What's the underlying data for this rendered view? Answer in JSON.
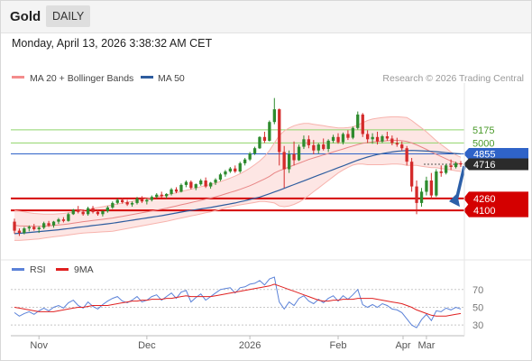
{
  "header": {
    "symbol": "Gold",
    "timeframe": "DAILY",
    "timestamp": "Monday, April 13, 2026 3:38:32 AM CET"
  },
  "legend": {
    "bollinger": {
      "label": "MA 20 + Bollinger Bands",
      "color": "#f48c8c"
    },
    "ma50": {
      "label": "MA 50",
      "color": "#2e5d9f"
    },
    "credit": "Research © 2026 Trading Central"
  },
  "rsi_legend": {
    "rsi": {
      "label": "RSI",
      "color": "#5b82d8"
    },
    "ma9": {
      "label": "9MA",
      "color": "#e02020"
    }
  },
  "colors": {
    "up": "#2e8b2e",
    "down": "#d42a2a",
    "band_fill": "#fde6e4",
    "support": "#d40000",
    "resistance": "#8fd46a",
    "ma50_level": "#2f63c8",
    "arrow": "#2c5fa8"
  },
  "chart_data": [
    {
      "type": "candlestick",
      "x_labels": [
        "Nov",
        "Dec",
        "2026",
        "Feb",
        "Mar",
        "Apr"
      ],
      "ylim": [
        3500,
        5800
      ],
      "levels": [
        {
          "value": 5175,
          "label": "5175",
          "kind": "resistance"
        },
        {
          "value": 5000,
          "label": "5000",
          "kind": "resistance"
        },
        {
          "value": 4855,
          "label": "4855",
          "kind": "ma50"
        },
        {
          "value": 4716,
          "label": "4716",
          "kind": "last"
        },
        {
          "value": 4260,
          "label": "4260",
          "kind": "support"
        },
        {
          "value": 4100,
          "label": "4100",
          "kind": "support"
        }
      ],
      "candles": [
        [
          3950,
          3990,
          3790,
          3830
        ],
        [
          3830,
          3860,
          3760,
          3800
        ],
        [
          3800,
          3880,
          3780,
          3860
        ],
        [
          3860,
          3900,
          3820,
          3880
        ],
        [
          3880,
          3920,
          3830,
          3850
        ],
        [
          3850,
          3890,
          3800,
          3870
        ],
        [
          3870,
          3950,
          3850,
          3930
        ],
        [
          3930,
          3960,
          3880,
          3900
        ],
        [
          3900,
          3960,
          3870,
          3950
        ],
        [
          3950,
          4000,
          3920,
          3980
        ],
        [
          3980,
          4010,
          3940,
          3960
        ],
        [
          3960,
          4070,
          3950,
          4050
        ],
        [
          4050,
          4120,
          4040,
          4110
        ],
        [
          4110,
          4160,
          4060,
          4080
        ],
        [
          4080,
          4110,
          4030,
          4050
        ],
        [
          4050,
          4150,
          4030,
          4130
        ],
        [
          4130,
          4160,
          4060,
          4080
        ],
        [
          4080,
          4110,
          4030,
          4050
        ],
        [
          4050,
          4100,
          4020,
          4090
        ],
        [
          4090,
          4160,
          4070,
          4140
        ],
        [
          4140,
          4220,
          4120,
          4200
        ],
        [
          4200,
          4260,
          4180,
          4240
        ],
        [
          4240,
          4270,
          4190,
          4210
        ],
        [
          4210,
          4240,
          4160,
          4180
        ],
        [
          4180,
          4220,
          4150,
          4200
        ],
        [
          4200,
          4280,
          4180,
          4260
        ],
        [
          4260,
          4290,
          4200,
          4220
        ],
        [
          4220,
          4260,
          4180,
          4240
        ],
        [
          4240,
          4300,
          4220,
          4280
        ],
        [
          4280,
          4330,
          4260,
          4310
        ],
        [
          4310,
          4350,
          4270,
          4290
        ],
        [
          4290,
          4330,
          4260,
          4320
        ],
        [
          4320,
          4400,
          4300,
          4380
        ],
        [
          4380,
          4410,
          4330,
          4350
        ],
        [
          4350,
          4460,
          4340,
          4440
        ],
        [
          4440,
          4500,
          4410,
          4480
        ],
        [
          4480,
          4500,
          4380,
          4400
        ],
        [
          4400,
          4460,
          4370,
          4450
        ],
        [
          4450,
          4520,
          4430,
          4500
        ],
        [
          4500,
          4540,
          4400,
          4420
        ],
        [
          4420,
          4480,
          4390,
          4470
        ],
        [
          4470,
          4530,
          4440,
          4510
        ],
        [
          4510,
          4600,
          4490,
          4580
        ],
        [
          4580,
          4640,
          4550,
          4620
        ],
        [
          4620,
          4680,
          4600,
          4660
        ],
        [
          4660,
          4700,
          4600,
          4620
        ],
        [
          4620,
          4750,
          4600,
          4730
        ],
        [
          4730,
          4800,
          4700,
          4780
        ],
        [
          4780,
          4880,
          4760,
          4860
        ],
        [
          4860,
          4950,
          4840,
          4930
        ],
        [
          4930,
          5090,
          4920,
          5080
        ],
        [
          5080,
          5150,
          5000,
          5030
        ],
        [
          5030,
          5300,
          5020,
          5280
        ],
        [
          5280,
          5600,
          5250,
          5450
        ],
        [
          5450,
          5460,
          4700,
          4880
        ],
        [
          4880,
          4960,
          4400,
          4650
        ],
        [
          4650,
          4900,
          4600,
          4850
        ],
        [
          4850,
          5020,
          4700,
          4770
        ],
        [
          4770,
          4980,
          4760,
          4950
        ],
        [
          4950,
          5100,
          4920,
          5050
        ],
        [
          5050,
          5100,
          4930,
          4970
        ],
        [
          4970,
          5040,
          4850,
          4900
        ],
        [
          4900,
          5000,
          4860,
          4980
        ],
        [
          4980,
          5060,
          4900,
          4920
        ],
        [
          4920,
          5050,
          4880,
          5030
        ],
        [
          5030,
          5110,
          5000,
          5080
        ],
        [
          5080,
          5130,
          4990,
          5010
        ],
        [
          5010,
          5140,
          4980,
          5120
        ],
        [
          5120,
          5170,
          5040,
          5070
        ],
        [
          5070,
          5220,
          5050,
          5200
        ],
        [
          5200,
          5420,
          5180,
          5380
        ],
        [
          5380,
          5400,
          5080,
          5120
        ],
        [
          5120,
          5170,
          5000,
          5050
        ],
        [
          5050,
          5130,
          4990,
          5080
        ],
        [
          5080,
          5150,
          4980,
          5020
        ],
        [
          5020,
          5110,
          5000,
          5090
        ],
        [
          5090,
          5150,
          5030,
          5060
        ],
        [
          5060,
          5100,
          4970,
          5000
        ],
        [
          5000,
          5070,
          4950,
          4980
        ],
        [
          4980,
          5020,
          4900,
          4930
        ],
        [
          4930,
          4960,
          4700,
          4750
        ],
        [
          4750,
          4800,
          4350,
          4420
        ],
        [
          4420,
          4500,
          4050,
          4200
        ],
        [
          4200,
          4400,
          4150,
          4350
        ],
        [
          4350,
          4550,
          4300,
          4500
        ],
        [
          4500,
          4600,
          4250,
          4300
        ],
        [
          4300,
          4650,
          4280,
          4620
        ],
        [
          4620,
          4700,
          4550,
          4600
        ],
        [
          4600,
          4720,
          4580,
          4700
        ],
        [
          4700,
          4780,
          4640,
          4680
        ],
        [
          4680,
          4750,
          4660,
          4730
        ],
        [
          4730,
          4760,
          4680,
          4716
        ]
      ],
      "ma20": [
        3900,
        3895,
        3892,
        3890,
        3888,
        3888,
        3890,
        3895,
        3900,
        3906,
        3912,
        3920,
        3930,
        3940,
        3950,
        3958,
        3966,
        3974,
        3982,
        3990,
        3998,
        4010,
        4022,
        4034,
        4046,
        4058,
        4070,
        4082,
        4094,
        4106,
        4118,
        4130,
        4145,
        4160,
        4175,
        4190,
        4205,
        4220,
        4235,
        4250,
        4265,
        4282,
        4300,
        4320,
        4340,
        4360,
        4382,
        4405,
        4430,
        4458,
        4490,
        4520,
        4555,
        4600,
        4630,
        4655,
        4680,
        4705,
        4730,
        4755,
        4780,
        4800,
        4820,
        4840,
        4860,
        4880,
        4900,
        4920,
        4940,
        4960,
        4980,
        4995,
        5005,
        5015,
        5020,
        5025,
        5030,
        5035,
        5035,
        5030,
        5020,
        5000,
        4975,
        4945,
        4915,
        4880,
        4850,
        4820,
        4790,
        4760,
        4735,
        4715
      ],
      "bb_upper": [
        4100,
        4090,
        4080,
        4070,
        4060,
        4055,
        4050,
        4050,
        4052,
        4055,
        4060,
        4068,
        4078,
        4090,
        4102,
        4114,
        4126,
        4138,
        4150,
        4162,
        4174,
        4186,
        4198,
        4210,
        4222,
        4234,
        4246,
        4258,
        4270,
        4282,
        4294,
        4306,
        4320,
        4336,
        4352,
        4368,
        4384,
        4400,
        4416,
        4432,
        4448,
        4466,
        4486,
        4508,
        4532,
        4558,
        4590,
        4625,
        4665,
        4710,
        4760,
        4820,
        4900,
        5000,
        5100,
        5160,
        5200,
        5230,
        5250,
        5260,
        5260,
        5250,
        5240,
        5230,
        5220,
        5210,
        5200,
        5200,
        5205,
        5215,
        5240,
        5270,
        5300,
        5320,
        5330,
        5340,
        5345,
        5350,
        5350,
        5345,
        5340,
        5300,
        5250,
        5200,
        5150,
        5090,
        5030,
        4980,
        4930,
        4880,
        4840,
        4810
      ],
      "bb_lower": [
        3700,
        3700,
        3705,
        3710,
        3715,
        3720,
        3730,
        3740,
        3748,
        3756,
        3764,
        3772,
        3782,
        3790,
        3798,
        3802,
        3806,
        3810,
        3814,
        3818,
        3822,
        3834,
        3846,
        3858,
        3870,
        3882,
        3894,
        3906,
        3918,
        3930,
        3942,
        3954,
        3970,
        3984,
        3998,
        4012,
        4026,
        4040,
        4054,
        4068,
        4082,
        4098,
        4114,
        4132,
        4148,
        4162,
        4174,
        4185,
        4195,
        4206,
        4220,
        4220,
        4210,
        4200,
        4160,
        4150,
        4160,
        4180,
        4210,
        4250,
        4300,
        4350,
        4400,
        4450,
        4500,
        4550,
        4600,
        4640,
        4675,
        4705,
        4720,
        4720,
        4710,
        4710,
        4710,
        4710,
        4715,
        4720,
        4720,
        4715,
        4700,
        4700,
        4700,
        4690,
        4680,
        4670,
        4670,
        4660,
        4650,
        4640,
        4630,
        4620
      ],
      "ma50": [
        3790,
        3795,
        3800,
        3806,
        3812,
        3818,
        3824,
        3830,
        3836,
        3842,
        3850,
        3858,
        3866,
        3874,
        3882,
        3890,
        3898,
        3906,
        3914,
        3922,
        3930,
        3940,
        3950,
        3960,
        3970,
        3980,
        3990,
        4000,
        4010,
        4020,
        4030,
        4042,
        4054,
        4066,
        4078,
        4090,
        4100,
        4110,
        4120,
        4130,
        4140,
        4152,
        4164,
        4176,
        4188,
        4200,
        4215,
        4230,
        4246,
        4262,
        4278,
        4300,
        4322,
        4346,
        4370,
        4395,
        4420,
        4445,
        4470,
        4495,
        4520,
        4545,
        4570,
        4595,
        4620,
        4645,
        4670,
        4695,
        4720,
        4745,
        4770,
        4792,
        4812,
        4830,
        4846,
        4858,
        4870,
        4880,
        4890,
        4895,
        4898,
        4900,
        4898,
        4896,
        4892,
        4888,
        4884,
        4878,
        4870,
        4864,
        4859,
        4855
      ]
    },
    {
      "type": "line",
      "title": "RSI",
      "ylim": [
        20,
        85
      ],
      "levels": [
        70,
        50,
        30
      ],
      "series": [
        {
          "name": "RSI",
          "values": [
            44,
            40,
            43,
            45,
            42,
            46,
            49,
            46,
            50,
            52,
            49,
            55,
            58,
            52,
            49,
            56,
            51,
            48,
            53,
            57,
            60,
            62,
            57,
            55,
            58,
            62,
            56,
            58,
            62,
            64,
            58,
            62,
            66,
            60,
            67,
            69,
            56,
            61,
            65,
            58,
            62,
            66,
            70,
            71,
            72,
            66,
            72,
            73,
            76,
            77,
            80,
            75,
            82,
            84,
            56,
            48,
            56,
            52,
            60,
            63,
            57,
            54,
            59,
            55,
            60,
            63,
            57,
            63,
            59,
            64,
            70,
            53,
            50,
            53,
            50,
            54,
            52,
            48,
            47,
            44,
            37,
            30,
            27,
            36,
            42,
            35,
            46,
            45,
            49,
            47,
            50,
            48
          ]
        },
        {
          "name": "9MA",
          "values": [
            50,
            49,
            48,
            47,
            46,
            45,
            45,
            45,
            45,
            46,
            47,
            48,
            49,
            50,
            50,
            51,
            52,
            52,
            52,
            52,
            53,
            54,
            55,
            56,
            57,
            57,
            58,
            58,
            59,
            59,
            59,
            60,
            60,
            61,
            62,
            63,
            62,
            62,
            62,
            62,
            62,
            63,
            64,
            65,
            66,
            67,
            68,
            69,
            70,
            71,
            72,
            73,
            74,
            76,
            74,
            72,
            70,
            68,
            66,
            64,
            62,
            60,
            58,
            57,
            57,
            58,
            58,
            59,
            59,
            59,
            60,
            60,
            60,
            60,
            59,
            58,
            57,
            56,
            55,
            54,
            52,
            50,
            47,
            45,
            43,
            41,
            40,
            40,
            40,
            41,
            42,
            43
          ]
        }
      ]
    }
  ]
}
